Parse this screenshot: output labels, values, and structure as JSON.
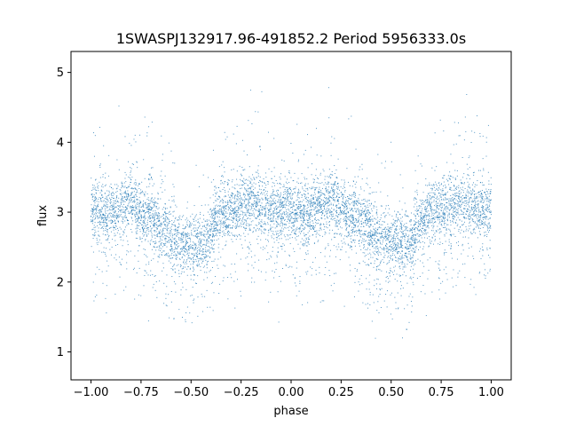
{
  "chart_data": {
    "type": "scatter",
    "title": "1SWASPJ132917.96-491852.2 Period 5956333.0s",
    "xlabel": "phase",
    "ylabel": "flux",
    "xlim": [
      -1.1,
      1.1
    ],
    "ylim": [
      0.6,
      5.3
    ],
    "grid": false,
    "legend": "none",
    "x_ticks": [
      -1.0,
      -0.75,
      -0.5,
      -0.25,
      0.0,
      0.25,
      0.5,
      0.75,
      1.0
    ],
    "x_tick_labels": [
      "−1.00",
      "−0.75",
      "−0.50",
      "−0.25",
      "0.00",
      "0.25",
      "0.50",
      "0.75",
      "1.00"
    ],
    "y_ticks": [
      1,
      2,
      3,
      4,
      5
    ],
    "y_tick_labels": [
      "1",
      "2",
      "3",
      "4",
      "5"
    ],
    "point_color": "#1f77b4",
    "series": [
      {
        "x": [
          -1.0,
          -0.98,
          -0.95,
          -0.92,
          -0.9,
          -0.88,
          -0.85,
          -0.82,
          -0.8,
          -0.78,
          -0.75,
          -0.72,
          -0.7,
          -0.68,
          -0.65,
          -0.62,
          -0.6,
          -0.58,
          -0.55,
          -0.52,
          -0.5,
          -0.48,
          -0.45,
          -0.42,
          -0.4,
          -0.38,
          -0.35,
          -0.32,
          -0.3,
          -0.28,
          -0.25,
          -0.22,
          -0.2,
          -0.18,
          -0.15,
          -0.12,
          -0.1,
          -0.08,
          -0.05,
          -0.02,
          0.0,
          0.02,
          0.05,
          0.08,
          0.1,
          0.12,
          0.15,
          0.18,
          0.2,
          0.22,
          0.25,
          0.28,
          0.3,
          0.32,
          0.35,
          0.38,
          0.4,
          0.42,
          0.45,
          0.48,
          0.5,
          0.52,
          0.55,
          0.58,
          0.6,
          0.62,
          0.65,
          0.68,
          0.7,
          0.72,
          0.75,
          0.78,
          0.8,
          0.82,
          0.85,
          0.88,
          0.9,
          0.92,
          0.95,
          0.98,
          1.0
        ],
        "y": [
          3.05,
          3.0,
          3.05,
          2.95,
          3.05,
          3.0,
          3.1,
          3.15,
          3.2,
          3.1,
          3.0,
          2.95,
          3.0,
          2.9,
          2.8,
          2.75,
          2.65,
          2.6,
          2.55,
          2.55,
          2.6,
          2.6,
          2.55,
          2.6,
          2.75,
          2.85,
          3.0,
          3.05,
          3.0,
          3.05,
          3.1,
          3.1,
          3.15,
          3.1,
          3.1,
          3.05,
          3.1,
          3.05,
          3.0,
          3.05,
          3.05,
          3.0,
          3.0,
          2.95,
          3.0,
          3.05,
          3.1,
          3.1,
          3.2,
          3.1,
          3.05,
          3.0,
          2.95,
          3.0,
          2.9,
          2.8,
          2.75,
          2.65,
          2.6,
          2.55,
          2.55,
          2.6,
          2.6,
          2.55,
          2.6,
          2.75,
          2.85,
          3.0,
          3.05,
          3.0,
          3.05,
          3.1,
          3.1,
          3.15,
          3.1,
          3.1,
          3.05,
          3.1,
          3.05,
          3.0,
          3.05
        ]
      }
    ]
  }
}
